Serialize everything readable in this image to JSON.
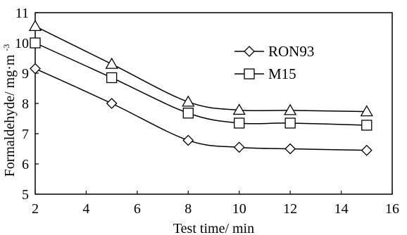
{
  "chart_data": {
    "type": "line",
    "xlabel": "Test time/ min",
    "ylabel": "Formaldehyde/ mg·m",
    "ylabel_superscript": "-3",
    "xlim": [
      2,
      16
    ],
    "ylim": [
      5,
      11
    ],
    "xticks": [
      "2",
      "4",
      "6",
      "8",
      "10",
      "12",
      "14",
      "16"
    ],
    "yticks": [
      "5",
      "6",
      "7",
      "8",
      "9",
      "10",
      "11"
    ],
    "grid": false,
    "legend_position": "top-right",
    "series": [
      {
        "name": "RON93",
        "marker": "diamond",
        "x": [
          2,
          5,
          8,
          10,
          12,
          15
        ],
        "y": [
          9.15,
          8.0,
          6.78,
          6.55,
          6.5,
          6.45
        ]
      },
      {
        "name": "M15",
        "marker": "square",
        "x": [
          2,
          5,
          8,
          10,
          12,
          15
        ],
        "y": [
          10.0,
          8.85,
          7.68,
          7.35,
          7.35,
          7.28
        ]
      },
      {
        "name": "",
        "marker": "triangle",
        "x": [
          2,
          5,
          8,
          10,
          12,
          15
        ],
        "y": [
          10.55,
          9.3,
          8.05,
          7.78,
          7.77,
          7.73
        ]
      }
    ]
  }
}
